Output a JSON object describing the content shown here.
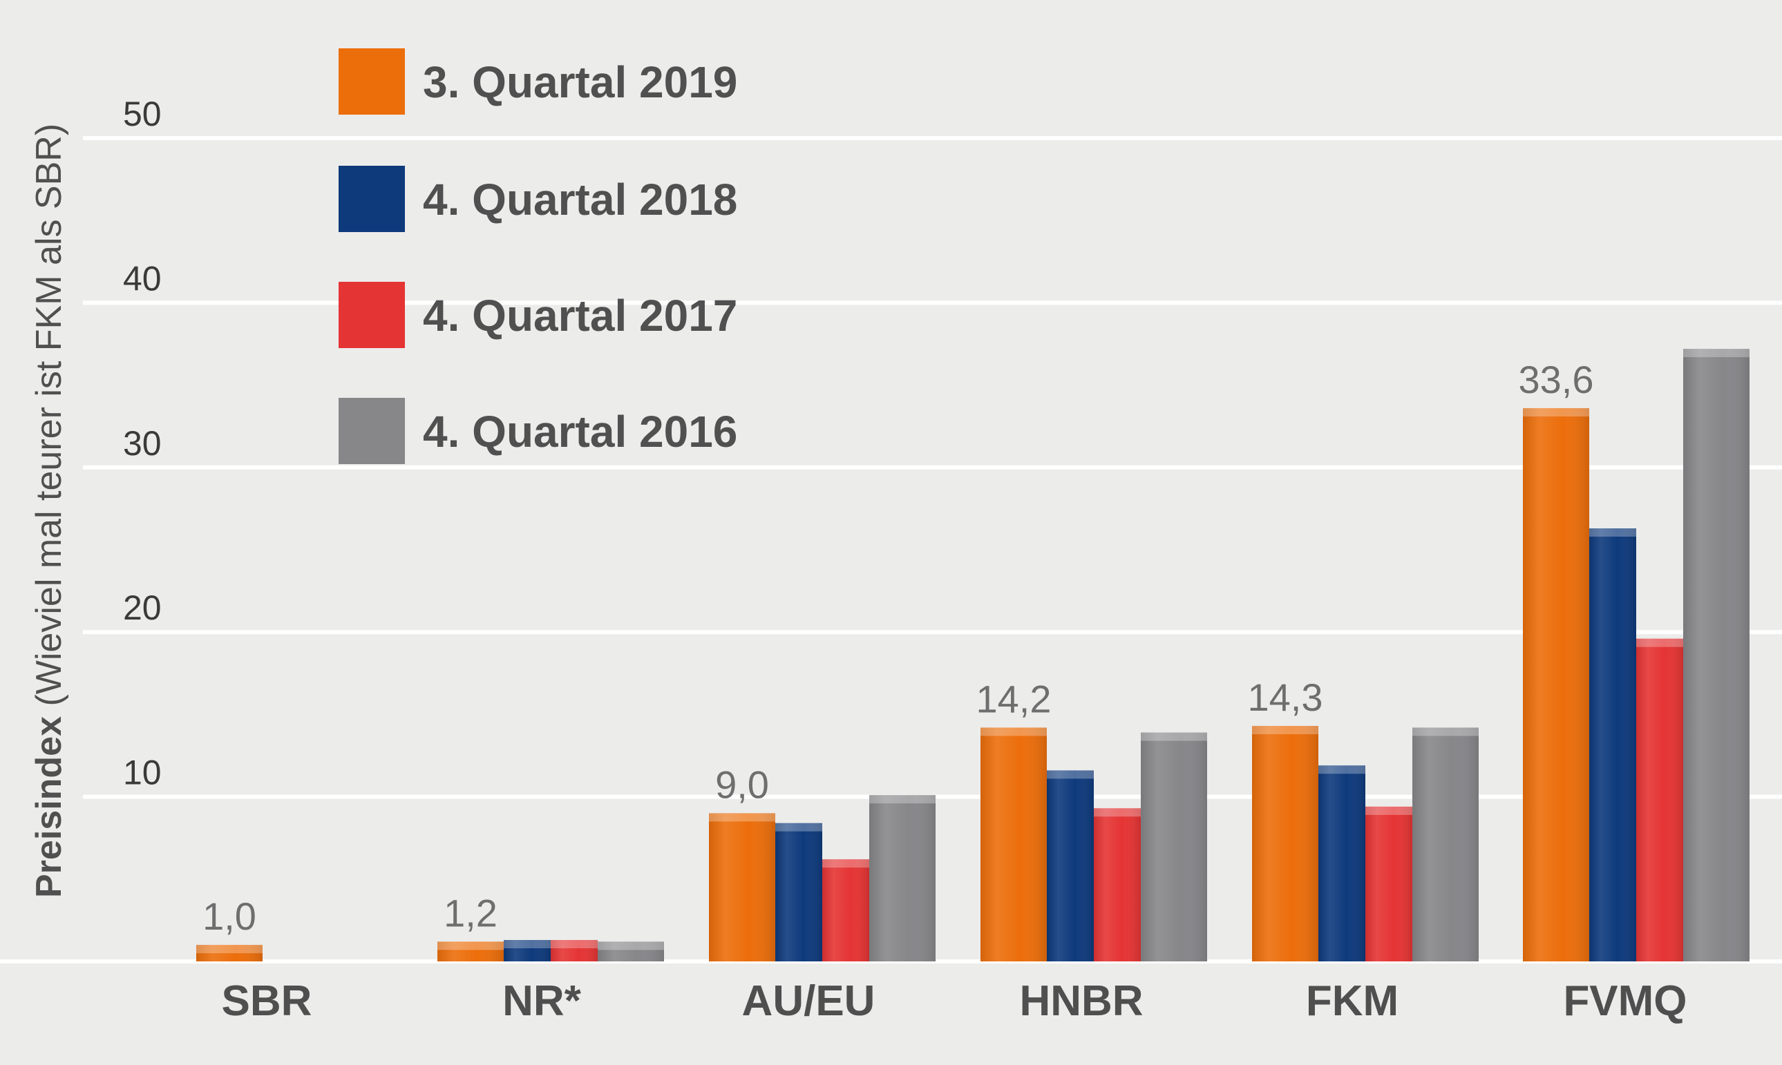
{
  "chart_data": {
    "type": "bar",
    "title": "",
    "xlabel": "",
    "ylabel_bold": "Preisindex",
    "ylabel_rest": " (Wieviel mal teurer ist FKM als SBR)",
    "ylim": [
      0,
      50
    ],
    "yticks": [
      10,
      20,
      30,
      40,
      50
    ],
    "grid": true,
    "legend_position": "top-left",
    "categories": [
      "SBR",
      "NR*",
      "AU/EU",
      "HNBR",
      "FKM",
      "FVMQ"
    ],
    "series": [
      {
        "name": "3. Quartal 2019",
        "color": "#ec6e0b",
        "values": [
          1.0,
          1.2,
          9.0,
          14.2,
          14.3,
          33.6
        ]
      },
      {
        "name": "4. Quartal 2018",
        "color": "#0e3a7c",
        "values": [
          null,
          1.3,
          8.4,
          11.6,
          11.9,
          26.3
        ]
      },
      {
        "name": "4. Quartal 2017",
        "color": "#e53434",
        "values": [
          null,
          1.3,
          6.2,
          9.3,
          9.4,
          19.6
        ]
      },
      {
        "name": "4. Quartal 2016",
        "color": "#87878a",
        "values": [
          null,
          1.2,
          10.1,
          13.9,
          14.2,
          37.2
        ]
      }
    ],
    "data_labels": [
      "1,0",
      "1,2",
      "9,0",
      "14,2",
      "14,3",
      "33,6"
    ]
  }
}
